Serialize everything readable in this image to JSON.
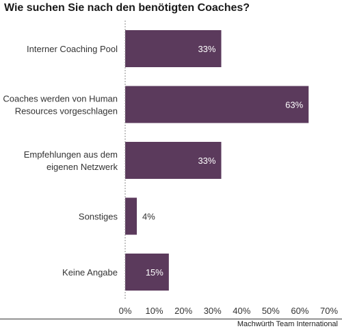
{
  "chart_data": {
    "type": "bar",
    "orientation": "horizontal",
    "title": "Wie suchen Sie nach den benötigten Coaches?",
    "categories": [
      [
        "Interner Coaching Pool"
      ],
      [
        "Coaches werden von Human",
        "Resources vorgeschlagen"
      ],
      [
        "Empfehlungen aus dem",
        "eigenen Netzwerk"
      ],
      [
        "Sonstiges"
      ],
      [
        "Keine Angabe"
      ]
    ],
    "values": [
      33,
      63,
      33,
      4,
      15
    ],
    "value_labels": [
      "33%",
      "63%",
      "33%",
      "4%",
      "15%"
    ],
    "xlim": [
      0,
      70
    ],
    "xticks": [
      "0%",
      "10%",
      "20%",
      "30%",
      "40%",
      "50%",
      "60%",
      "70%"
    ],
    "xlabel": "",
    "ylabel": "",
    "grid": false,
    "bar_color": "#5b3a5c",
    "label_inside_color": "#ffffff",
    "label_outside_color": "#333333"
  },
  "source": "Machwürth Team International"
}
